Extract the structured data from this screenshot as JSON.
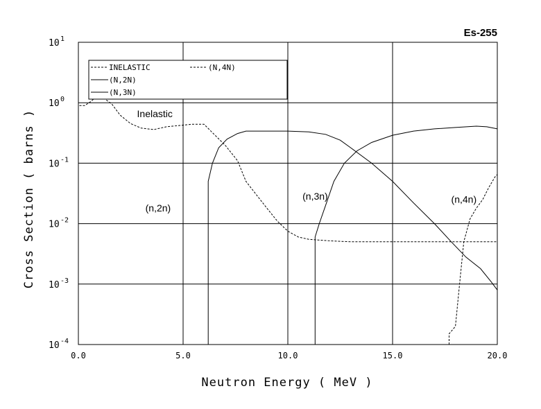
{
  "chart_data": {
    "type": "line",
    "title": "Es-255",
    "xlabel": "Neutron Energy ( MeV )",
    "ylabel": "Cross Section ( barns )",
    "xlim": [
      0,
      20
    ],
    "ylim": [
      0.0001,
      10
    ],
    "yscale": "log",
    "grid": true,
    "legend_position": "top-left",
    "x_ticks": [
      {
        "value": 0,
        "label": "0.0"
      },
      {
        "value": 5,
        "label": "5.0"
      },
      {
        "value": 10,
        "label": "10.0"
      },
      {
        "value": 15,
        "label": "15.0"
      },
      {
        "value": 20,
        "label": "20.0"
      }
    ],
    "y_ticks": [
      {
        "value": 10,
        "base": "10",
        "exp": "1"
      },
      {
        "value": 1,
        "base": "10",
        "exp": "0"
      },
      {
        "value": 0.1,
        "base": "10",
        "exp": "-1"
      },
      {
        "value": 0.01,
        "base": "10",
        "exp": "-2"
      },
      {
        "value": 0.001,
        "base": "10",
        "exp": "-3"
      },
      {
        "value": 0.0001,
        "base": "10",
        "exp": "-4"
      }
    ],
    "legend": [
      {
        "label": "INELASTIC",
        "dash": "dashed"
      },
      {
        "label": "(N,4N)",
        "dash": "dashed"
      },
      {
        "label": "(N,2N)",
        "dash": "solid"
      },
      {
        "label": "(N,3N)",
        "dash": "solid"
      }
    ],
    "series": [
      {
        "name": "INELASTIC",
        "dash": "dashed",
        "x": [
          0.05,
          0.3,
          0.6,
          0.9,
          1.2,
          1.6,
          2.0,
          2.5,
          3.0,
          3.6,
          4.2,
          4.8,
          5.4,
          6.0,
          6.4,
          7.0,
          7.6,
          8.0,
          8.5,
          9.0,
          9.5,
          10.0,
          10.5,
          11.0,
          12.0,
          13.0,
          14.0,
          15.0,
          16.0,
          17.0,
          18.0,
          19.0,
          20.0
        ],
        "y": [
          0.9,
          0.9,
          1.05,
          1.3,
          1.2,
          0.95,
          0.62,
          0.45,
          0.38,
          0.36,
          0.4,
          0.42,
          0.44,
          0.44,
          0.32,
          0.2,
          0.11,
          0.05,
          0.03,
          0.018,
          0.011,
          0.0075,
          0.006,
          0.0055,
          0.0052,
          0.005,
          0.005,
          0.005,
          0.005,
          0.005,
          0.005,
          0.005,
          0.005
        ]
      },
      {
        "name": "(N,2N)",
        "dash": "solid",
        "x": [
          6.2,
          6.2,
          6.4,
          6.7,
          7.1,
          7.6,
          8.0,
          9.0,
          10.0,
          11.0,
          11.8,
          12.5,
          13.0,
          14.0,
          15.0,
          16.0,
          17.0,
          17.8,
          18.5,
          19.2,
          19.7,
          20.0
        ],
        "y": [
          0.0001,
          0.05,
          0.1,
          0.18,
          0.25,
          0.31,
          0.34,
          0.34,
          0.34,
          0.33,
          0.3,
          0.24,
          0.18,
          0.1,
          0.05,
          0.022,
          0.01,
          0.005,
          0.0028,
          0.0018,
          0.0011,
          0.0008
        ]
      },
      {
        "name": "(N,3N)",
        "dash": "solid",
        "x": [
          11.3,
          11.3,
          11.5,
          11.8,
          12.2,
          12.7,
          13.3,
          14.0,
          15.0,
          16.0,
          17.0,
          18.0,
          19.0,
          19.5,
          20.0
        ],
        "y": [
          0.0001,
          0.006,
          0.01,
          0.02,
          0.05,
          0.1,
          0.16,
          0.22,
          0.29,
          0.34,
          0.37,
          0.39,
          0.41,
          0.4,
          0.37
        ]
      },
      {
        "name": "(N,4N)",
        "dash": "dashed",
        "x": [
          17.7,
          17.7,
          18.0,
          18.2,
          18.4,
          18.7,
          19.0,
          19.3,
          19.6,
          19.9,
          20.0
        ],
        "y": [
          0.0001,
          0.00015,
          0.0002,
          0.001,
          0.005,
          0.012,
          0.018,
          0.025,
          0.04,
          0.06,
          0.065
        ]
      }
    ],
    "annotations": [
      {
        "text": "Inelastic",
        "x": 2.8,
        "y": 0.58
      },
      {
        "text": "(n,2n)",
        "x": 3.2,
        "y": 0.016
      },
      {
        "text": "(n,3n)",
        "x": 10.7,
        "y": 0.025
      },
      {
        "text": "(n,4n)",
        "x": 17.8,
        "y": 0.022
      }
    ]
  }
}
